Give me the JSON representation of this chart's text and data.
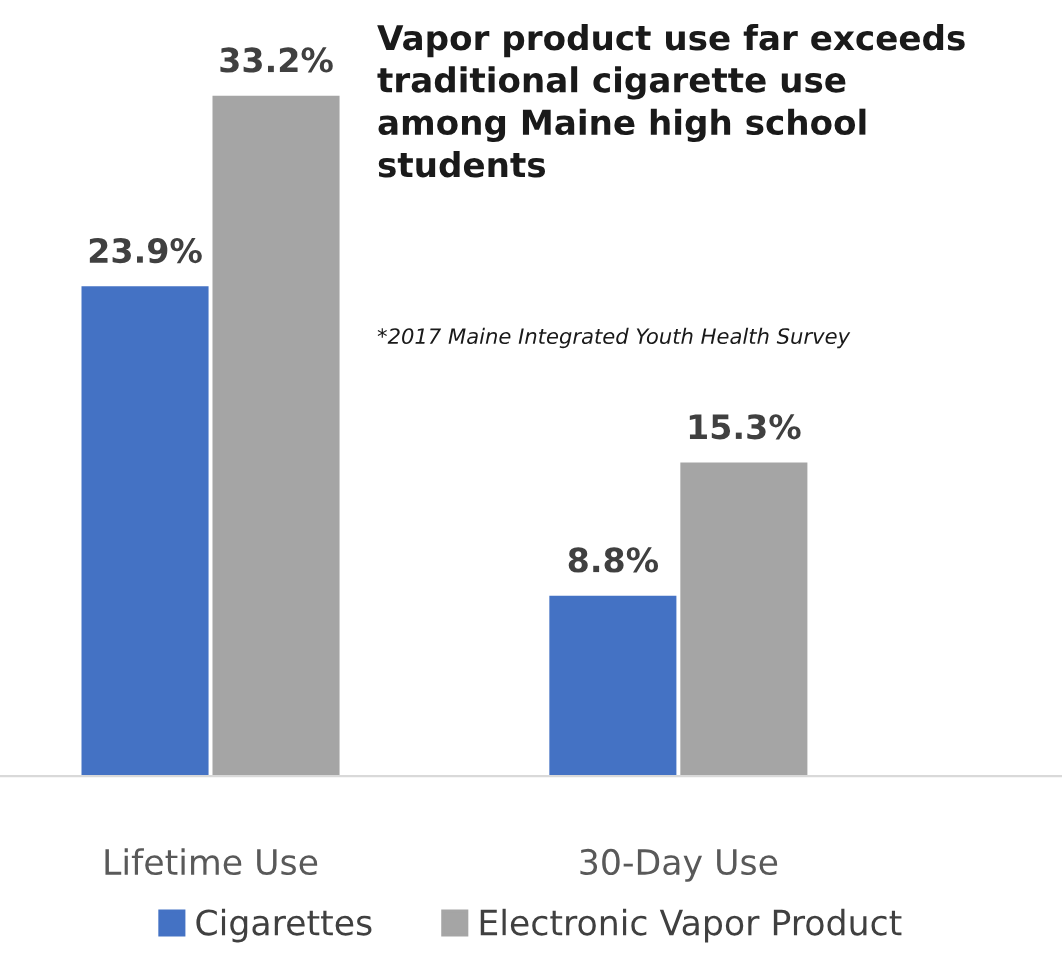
{
  "chart_data": {
    "type": "bar",
    "title": "Vapor product use far exceeds\ntraditional cigarette use\namong Maine high school\nstudents",
    "annotations": [
      "*2017 Maine Integrated Youth Health Survey"
    ],
    "categories": [
      "Lifetime Use",
      "30-Day Use"
    ],
    "series": [
      {
        "name": "Cigarettes",
        "color": "#4472c4",
        "values": [
          23.9,
          8.8
        ],
        "value_labels": [
          "23.9%",
          "8.8%"
        ]
      },
      {
        "name": "Electronic Vapor Product",
        "color": "#a5a5a5",
        "values": [
          33.2,
          15.3
        ],
        "value_labels": [
          "33.2%",
          "15.3%"
        ]
      }
    ],
    "tick_labels": "x",
    "grid": false,
    "legend": "bottom"
  }
}
